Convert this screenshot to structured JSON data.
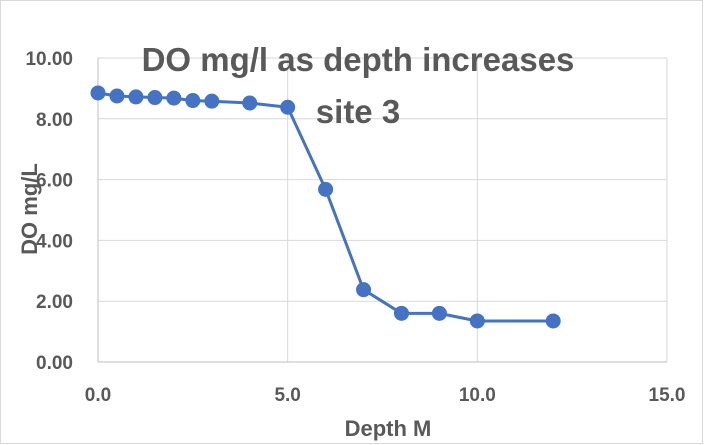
{
  "chart_data": {
    "type": "scatter",
    "title_lines": [
      "DO mg/l as depth increases",
      "site 3"
    ],
    "xlabel": "Depth M",
    "ylabel": "DO mg/L",
    "xlim": [
      0,
      15
    ],
    "ylim": [
      0,
      10
    ],
    "x_ticks": [
      "0.0",
      "5.0",
      "10.0",
      "15.0"
    ],
    "y_ticks": [
      "0.00",
      "2.00",
      "4.00",
      "6.00",
      "8.00",
      "10.00"
    ],
    "x_tick_values": [
      0,
      5,
      10,
      15
    ],
    "y_tick_values": [
      0,
      2,
      4,
      6,
      8,
      10
    ],
    "grid": true,
    "legend": "none",
    "series_color": "#4472c4",
    "series": [
      {
        "x": [
          0,
          0.5,
          1,
          1.5,
          2,
          2.5,
          3,
          4,
          5,
          6,
          7,
          8,
          9,
          10,
          12
        ],
        "values": [
          8.85,
          8.75,
          8.72,
          8.7,
          8.68,
          8.6,
          8.58,
          8.52,
          8.38,
          5.68,
          2.38,
          1.6,
          1.6,
          1.35,
          1.35
        ]
      }
    ]
  }
}
